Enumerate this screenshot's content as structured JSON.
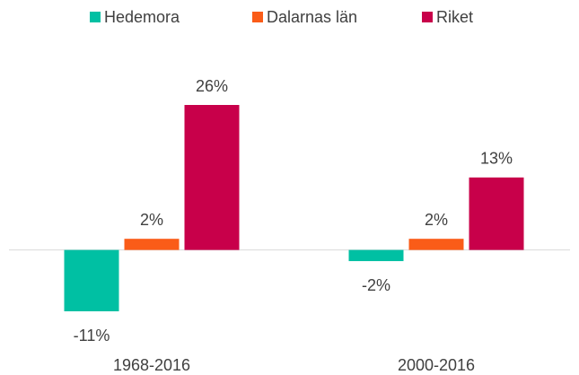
{
  "chart_data": {
    "type": "bar",
    "categories": [
      "1968-2016",
      "2000-2016"
    ],
    "series": [
      {
        "name": "Hedemora",
        "color": "#00c0a3",
        "values": [
          -11,
          -2
        ],
        "value_labels": [
          "-11%",
          "-2%"
        ]
      },
      {
        "name": "Dalarnas län",
        "color": "#fa5c18",
        "values": [
          2,
          2
        ],
        "value_labels": [
          "2%",
          "2%"
        ]
      },
      {
        "name": "Riket",
        "color": "#c8004a",
        "values": [
          26,
          13
        ],
        "value_labels": [
          "26%",
          "13%"
        ]
      }
    ],
    "legend": "top"
  }
}
